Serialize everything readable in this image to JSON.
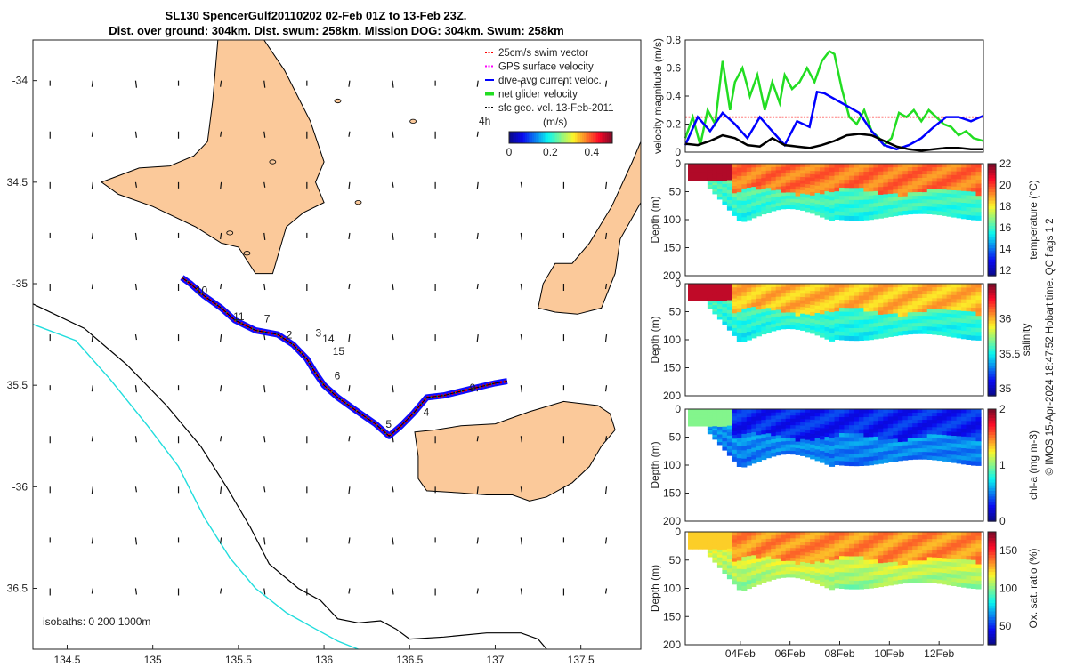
{
  "title": {
    "line1": "SL130 SpencerGulf20110202 02-Feb 01Z to 13-Feb 23Z.",
    "line2": "Dist. over ground: 304km. Dist. swum: 258km. Mission DOG: 304km. Swum: 258km"
  },
  "colors": {
    "land": "#fbc99a",
    "swim_vector": "#ff0000",
    "gps_velocity": "#ff00ff",
    "dive_avg": "#0000ff",
    "net_velocity": "#22dd22",
    "geo_velocity": "#000000",
    "isobath_0": "#000000",
    "isobath_200": "#000000",
    "isobath_1000": "#22dddd"
  },
  "chart_data": [
    {
      "type": "scatter",
      "name": "track_map",
      "xlim": [
        134.3,
        137.85
      ],
      "ylim": [
        -36.8,
        -33.8
      ],
      "xticks": [
        134.5,
        135,
        135.5,
        136,
        136.5,
        137,
        137.5
      ],
      "xtick_labels": [
        "134.5",
        "135",
        "135.5",
        "136",
        "136.5",
        "137",
        "137.5"
      ],
      "yticks": [
        -34,
        -34.5,
        -35,
        -35.5,
        -36,
        -36.5
      ],
      "ytick_labels": [
        "-34",
        "34.5",
        "-35",
        "35.5",
        "-36",
        "36.5"
      ],
      "legend": {
        "position": "top-right",
        "entries": [
          "25cm/s swim vector",
          "GPS surface velocity",
          "dive-avg current veloc.",
          "net glider velocity",
          "sfc geo. vel. 13-Feb-2011"
        ]
      },
      "colorbar": {
        "label": "(m/s)",
        "time_label": "4h",
        "ticks": [
          "0",
          "0.2",
          "0.4"
        ],
        "range": [
          0,
          0.5
        ]
      },
      "isobath_label": "isobaths: 0   200  1000m",
      "track": [
        [
          135.17,
          -34.97
        ],
        [
          135.22,
          -35.0
        ],
        [
          135.3,
          -35.06
        ],
        [
          135.4,
          -35.12
        ],
        [
          135.48,
          -35.18
        ],
        [
          135.6,
          -35.23
        ],
        [
          135.73,
          -35.25
        ],
        [
          135.82,
          -35.3
        ],
        [
          135.9,
          -35.37
        ],
        [
          135.95,
          -35.44
        ],
        [
          136.0,
          -35.5
        ],
        [
          136.08,
          -35.56
        ],
        [
          136.18,
          -35.62
        ],
        [
          136.3,
          -35.69
        ],
        [
          136.38,
          -35.75
        ],
        [
          136.45,
          -35.7
        ],
        [
          136.52,
          -35.64
        ],
        [
          136.6,
          -35.56
        ],
        [
          136.7,
          -35.55
        ],
        [
          136.85,
          -35.52
        ],
        [
          137.0,
          -35.49
        ],
        [
          137.07,
          -35.48
        ]
      ],
      "waypoints": [
        {
          "label": "10",
          "lon": 135.25,
          "lat": -35.05
        },
        {
          "label": "11",
          "lon": 135.47,
          "lat": -35.18
        },
        {
          "label": "7",
          "lon": 135.65,
          "lat": -35.19
        },
        {
          "label": "2",
          "lon": 135.78,
          "lat": -35.27
        },
        {
          "label": "3",
          "lon": 135.95,
          "lat": -35.26
        },
        {
          "label": "14",
          "lon": 135.99,
          "lat": -35.29
        },
        {
          "label": "15",
          "lon": 136.05,
          "lat": -35.35
        },
        {
          "label": "6",
          "lon": 136.06,
          "lat": -35.47
        },
        {
          "label": "5",
          "lon": 136.36,
          "lat": -35.71
        },
        {
          "label": "4",
          "lon": 136.58,
          "lat": -35.65
        },
        {
          "label": "9",
          "lon": 136.85,
          "lat": -35.53
        }
      ]
    },
    {
      "type": "line",
      "name": "velocity_magnitude",
      "ylabel": "velocity magnitude (m/s)",
      "ylim": [
        0,
        0.8
      ],
      "yticks": [
        0,
        0.2,
        0.4,
        0.6,
        0.8
      ],
      "ytick_labels": [
        "0",
        "0.2",
        "0.4",
        "0.6",
        "0.8"
      ],
      "xlim_days": [
        0,
        12
      ],
      "series": [
        {
          "name": "swim vector",
          "color": "#ff0000",
          "x": [
            0,
            12
          ],
          "values": [
            0.25,
            0.25
          ]
        },
        {
          "name": "net glider velocity",
          "color": "#22dd22",
          "x": [
            0,
            0.3,
            0.6,
            0.9,
            1.2,
            1.5,
            1.8,
            2.0,
            2.3,
            2.6,
            2.9,
            3.2,
            3.5,
            3.8,
            4.0,
            4.3,
            4.6,
            4.9,
            5.2,
            5.5,
            5.8,
            6.0,
            6.3,
            6.6,
            6.9,
            7.2,
            7.5,
            7.8,
            8.0,
            8.3,
            8.6,
            8.9,
            9.2,
            9.5,
            9.8,
            10.1,
            10.4,
            10.7,
            11.0,
            11.3,
            11.6,
            12.0
          ],
          "values": [
            0.1,
            0.25,
            0.05,
            0.3,
            0.2,
            0.65,
            0.3,
            0.5,
            0.6,
            0.4,
            0.55,
            0.3,
            0.5,
            0.35,
            0.55,
            0.45,
            0.5,
            0.6,
            0.5,
            0.65,
            0.72,
            0.7,
            0.45,
            0.25,
            0.2,
            0.3,
            0.15,
            0.1,
            0.05,
            0.1,
            0.28,
            0.25,
            0.3,
            0.22,
            0.3,
            0.25,
            0.2,
            0.18,
            0.12,
            0.15,
            0.1,
            0.08
          ]
        },
        {
          "name": "dive-avg current veloc.",
          "color": "#0000ff",
          "x": [
            0,
            0.5,
            1.0,
            1.5,
            2.0,
            2.5,
            3.0,
            3.5,
            4.0,
            4.5,
            5.0,
            5.3,
            5.6,
            6.0,
            6.5,
            7.0,
            7.5,
            8.0,
            8.5,
            9.0,
            9.5,
            10.0,
            10.5,
            11.0,
            11.5,
            12.0
          ],
          "values": [
            0.05,
            0.25,
            0.15,
            0.28,
            0.2,
            0.1,
            0.25,
            0.15,
            0.05,
            0.22,
            0.18,
            0.43,
            0.42,
            0.38,
            0.33,
            0.28,
            0.15,
            0.05,
            0.02,
            0.05,
            0.1,
            0.18,
            0.25,
            0.25,
            0.22,
            0.26
          ]
        },
        {
          "name": "sfc geo. vel.",
          "color": "#000000",
          "x": [
            0,
            0.5,
            1.0,
            1.5,
            2.0,
            2.5,
            3.0,
            3.5,
            4.0,
            4.5,
            5.0,
            5.5,
            6.0,
            6.5,
            7.0,
            7.5,
            8.0,
            8.5,
            9.0,
            9.5,
            10.0,
            10.5,
            11.0,
            11.5,
            12.0
          ],
          "values": [
            0.06,
            0.05,
            0.08,
            0.12,
            0.1,
            0.05,
            0.04,
            0.1,
            0.05,
            0.04,
            0.03,
            0.05,
            0.08,
            0.12,
            0.13,
            0.12,
            0.08,
            0.04,
            0.02,
            0.01,
            0.02,
            0.03,
            0.03,
            0.02,
            0.02
          ]
        }
      ]
    },
    {
      "type": "heatmap",
      "name": "temperature",
      "ylabel": "Depth (m)",
      "colorbar_label": "temperature (°C)",
      "cbar_range": [
        11.5,
        22
      ],
      "cbar_ticks": [
        "22",
        "20",
        "18",
        "16",
        "14",
        "12"
      ],
      "yticks": [
        "0",
        "50",
        "100",
        "150",
        "200"
      ],
      "surface_value": 19.5,
      "deep_value": 16.3,
      "warm_early_value": 21.5
    },
    {
      "type": "heatmap",
      "name": "salinity",
      "ylabel": "Depth (m)",
      "colorbar_label": "salinity",
      "cbar_range": [
        34.9,
        36.5
      ],
      "cbar_ticks": [
        "36",
        "35.5",
        "35"
      ],
      "yticks": [
        "0",
        "50",
        "100",
        "150",
        "200"
      ],
      "surface_value": 36.0,
      "deep_value": 35.6,
      "warm_early_value": 36.4
    },
    {
      "type": "heatmap",
      "name": "chl-a",
      "ylabel": "Depth (m)",
      "colorbar_label": "chl-a (mg m-3)",
      "cbar_range": [
        0,
        2
      ],
      "cbar_ticks": [
        "2",
        "1",
        "0"
      ],
      "yticks": [
        "0",
        "50",
        "100",
        "150",
        "200"
      ],
      "surface_value": 0.3,
      "deep_value": 0.55,
      "warm_early_value": 1.0
    },
    {
      "type": "heatmap",
      "name": "oxygen",
      "ylabel": "Depth (m)",
      "colorbar_label": "Ox. sat. ratio (%)",
      "cbar_range": [
        25,
        175
      ],
      "cbar_ticks": [
        "150",
        "100",
        "50"
      ],
      "yticks": [
        "0",
        "50",
        "100",
        "150",
        "200"
      ],
      "xtick_labels": [
        "04Feb",
        "06Feb",
        "08Feb",
        "10Feb",
        "12Feb"
      ],
      "surface_value": 135,
      "deep_value": 115,
      "warm_early_value": 125
    }
  ],
  "credit": "© IMOS 15-Apr-2024 18:47:52 Hobart time. QC flags 1  2"
}
